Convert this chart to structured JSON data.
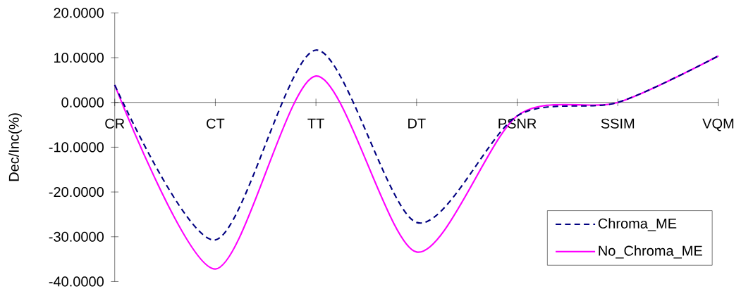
{
  "chart_data": {
    "type": "line",
    "ylabel": "Dec/Inc(%)",
    "categories": [
      "CR",
      "CT",
      "TT",
      "DT",
      "PSNR",
      "SSIM",
      "VQM"
    ],
    "series": [
      {
        "name": "Chroma_ME",
        "color": "#000080",
        "line_style": "dashed",
        "values": [
          3.9,
          -30.7,
          11.7,
          -26.8,
          -3.0,
          0.0,
          10.4
        ]
      },
      {
        "name": "No_Chroma_ME",
        "color": "#ff00ff",
        "line_style": "solid",
        "values": [
          3.9,
          -37.2,
          5.9,
          -33.4,
          -3.0,
          0.0,
          10.4
        ]
      }
    ],
    "ylim": [
      -40,
      20
    ],
    "yticks": [
      {
        "value": -40,
        "label": "-40.0000"
      },
      {
        "value": -30,
        "label": "-30.0000"
      },
      {
        "value": -20,
        "label": "-20.0000"
      },
      {
        "value": -10,
        "label": "-10.0000"
      },
      {
        "value": 0,
        "label": "0.0000"
      },
      {
        "value": 10,
        "label": "10.0000"
      },
      {
        "value": 20,
        "label": "20.0000"
      }
    ],
    "marker": "none",
    "grid": false,
    "legend": "bottom right"
  }
}
